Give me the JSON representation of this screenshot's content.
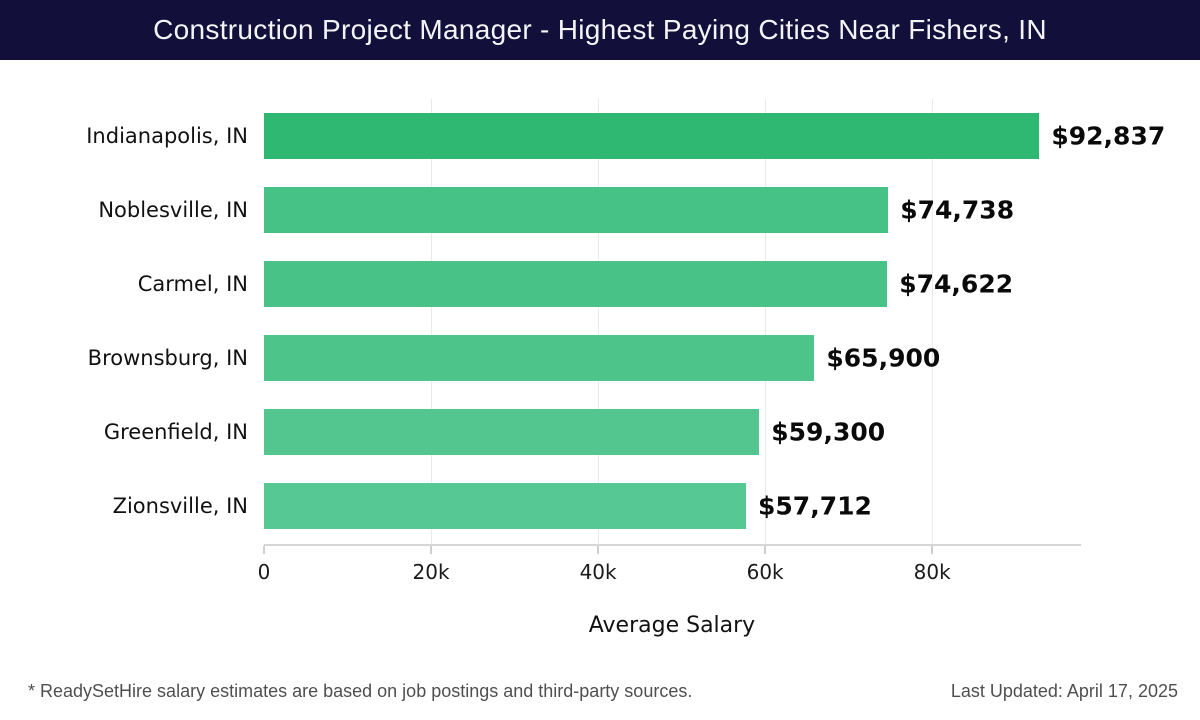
{
  "header": {
    "title": "Construction Project Manager - Highest Paying Cities Near Fishers, IN",
    "bg_color": "#12103a",
    "text_color": "#f4f4f8"
  },
  "chart_data": {
    "type": "bar",
    "orientation": "horizontal",
    "title": "Construction Project Manager - Highest Paying Cities Near Fishers, IN",
    "categories": [
      "Indianapolis, IN",
      "Noblesville, IN",
      "Carmel, IN",
      "Brownsburg, IN",
      "Greenfield, IN",
      "Zionsville, IN"
    ],
    "values": [
      92837,
      74738,
      74622,
      65900,
      59300,
      57712
    ],
    "value_labels": [
      "$92,837",
      "$74,738",
      "$74,622",
      "$65,900",
      "$59,300",
      "$57,712"
    ],
    "bar_colors": [
      "#2eb872",
      "#47c286",
      "#48c287",
      "#4cc48a",
      "#53c690",
      "#56c893"
    ],
    "xlabel": "Average Salary",
    "ylabel": "",
    "xlim": [
      0,
      97700
    ],
    "x_ticks": [
      {
        "value": 0,
        "label": "0"
      },
      {
        "value": 20000,
        "label": "20k"
      },
      {
        "value": 40000,
        "label": "40k"
      },
      {
        "value": 60000,
        "label": "60k"
      },
      {
        "value": 80000,
        "label": "80k"
      }
    ],
    "grid": "vertical",
    "legend": "none"
  },
  "footer": {
    "disclaimer": "* ReadySetHire salary estimates are based on job postings and third-party sources.",
    "last_updated": "Last Updated: April 17, 2025"
  }
}
